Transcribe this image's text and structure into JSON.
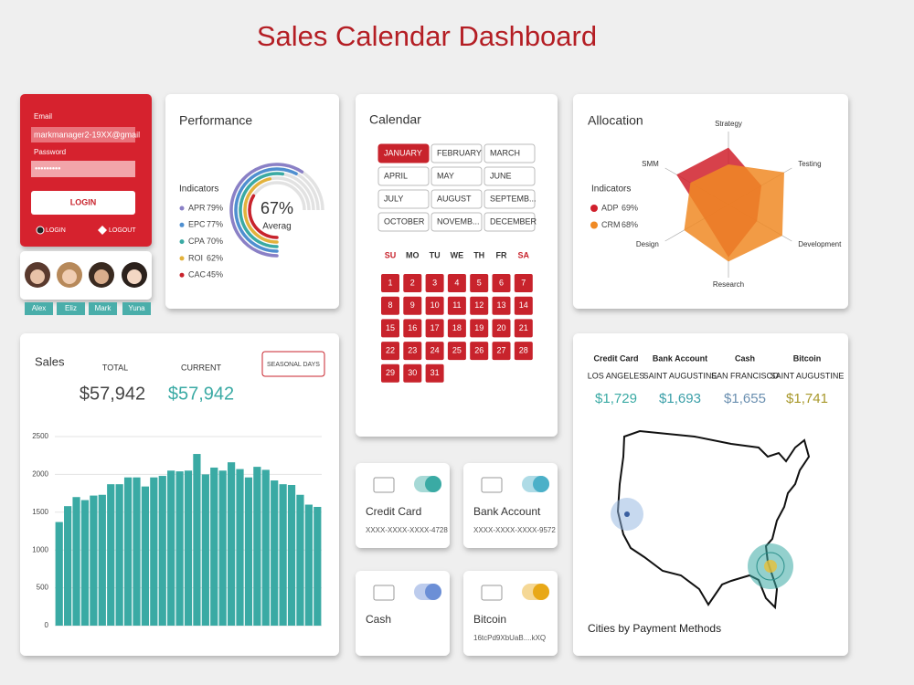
{
  "header": {
    "title": "Sales Calendar Dashboard"
  },
  "login": {
    "email_label": "Email",
    "email": "markmanager2-19XX@gmail",
    "password_label": "Password",
    "password": "•••••••••",
    "button": "LOGIN",
    "options": [
      "LOGIN",
      "LOGOUT"
    ]
  },
  "users": [
    "Alex",
    "Eliz",
    "Mark",
    "Yuna"
  ],
  "performance": {
    "title": "Performance",
    "legend_title": "Indicators",
    "center_value": "67%",
    "center_label": "Averag",
    "indicators": [
      {
        "name": "APR",
        "value": 79,
        "label": "79%",
        "color": "#8a80c6"
      },
      {
        "name": "EPC",
        "value": 77,
        "label": "77%",
        "color": "#4f8fd0"
      },
      {
        "name": "CPA",
        "value": 70,
        "label": "70%",
        "color": "#3aaaa4"
      },
      {
        "name": "ROI",
        "value": 62,
        "label": "62%",
        "color": "#e3b23c"
      },
      {
        "name": "CAC",
        "value": 45,
        "label": "45%",
        "color": "#c8232c"
      }
    ]
  },
  "calendar": {
    "title": "Calendar",
    "selected_month": 0,
    "months": [
      "JANUARY",
      "FEBRUARY",
      "MARCH",
      "APRIL",
      "MAY",
      "JUNE",
      "JULY",
      "AUGUST",
      "SEPTEMB...",
      "OCTOBER",
      "NOVEMB...",
      "DECEMBER"
    ],
    "weekdays": [
      "SU",
      "MO",
      "TU",
      "WE",
      "TH",
      "FR",
      "SA"
    ],
    "days": [
      1,
      2,
      3,
      4,
      5,
      6,
      7,
      8,
      9,
      10,
      11,
      12,
      13,
      14,
      15,
      16,
      17,
      18,
      19,
      20,
      21,
      22,
      23,
      24,
      25,
      26,
      27,
      28,
      29,
      30,
      31
    ]
  },
  "allocation": {
    "title": "Allocation",
    "legend_title": "Indicators",
    "rlim": [
      0,
      100
    ],
    "axes": [
      "Strategy",
      "Testing",
      "Development",
      "Research",
      "Design",
      "SMM"
    ],
    "series": [
      {
        "name": "ADP",
        "label": "69%",
        "color": "#d0202c",
        "values": [
          78,
          52,
          45,
          72,
          38,
          82
        ]
      },
      {
        "name": "CRM",
        "label": "68%",
        "color": "#f08a24",
        "values": [
          55,
          88,
          85,
          78,
          70,
          60
        ]
      }
    ]
  },
  "sales": {
    "title": "Sales",
    "total_label": "TOTAL",
    "total": "$57,942",
    "current_label": "CURRENT",
    "current": "$57,942",
    "button": "SEASONAL DAYS",
    "chart": {
      "type": "bar",
      "color": "#3aaaa4",
      "ylim": [
        0,
        2500
      ],
      "yticks": [
        0,
        500,
        1000,
        1500,
        2000,
        2500
      ],
      "grid": true,
      "values": [
        1370,
        1580,
        1700,
        1660,
        1720,
        1730,
        1870,
        1870,
        1960,
        1960,
        1840,
        1960,
        1980,
        2050,
        2040,
        2050,
        2270,
        2000,
        2090,
        2050,
        2160,
        2070,
        1960,
        2100,
        2060,
        1920,
        1870,
        1860,
        1730,
        1600,
        1570
      ]
    }
  },
  "payment_methods": [
    {
      "name": "Credit Card",
      "detail": "XXXX-XXXX-XXXX-4728",
      "toggle_color": "#3aaaa4"
    },
    {
      "name": "Bank Account",
      "detail": "XXXX-XXXX-XXXX-9572",
      "toggle_color": "#4bb0c8"
    },
    {
      "name": "Cash",
      "toggle_color": "#6c8fd6"
    },
    {
      "name": "Bitcoin",
      "detail": "16tcPd9XbUaB....kXQ",
      "toggle_color": "#e8a817"
    }
  ],
  "city_map": {
    "caption": "Cities by Payment Methods",
    "columns": [
      {
        "method": "Credit Card",
        "city": "LOS ANGELES",
        "amount": "$1,729",
        "color": "#3aaaa4"
      },
      {
        "method": "Bank Account",
        "city": "SAINT AUGUSTINE",
        "amount": "$1,693",
        "color": "#3a9fa8"
      },
      {
        "method": "Cash",
        "city": "SAN FRANCISCO",
        "amount": "$1,655",
        "color": "#6a8fb0"
      },
      {
        "method": "Bitcoin",
        "city": "SAINT AUGUSTINE",
        "amount": "$1,741",
        "color": "#a8982a"
      }
    ]
  }
}
